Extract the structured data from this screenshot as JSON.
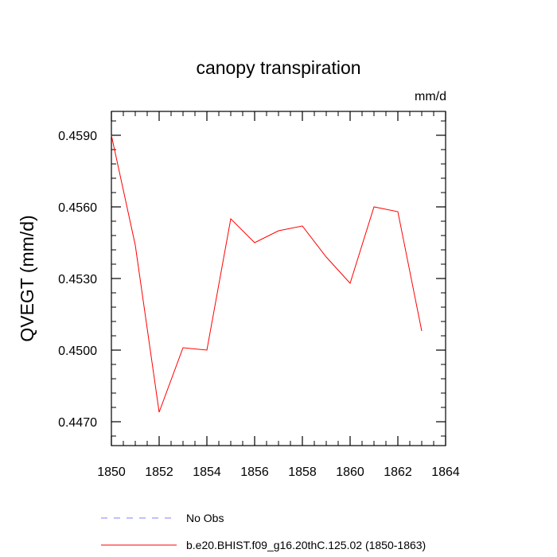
{
  "chart_data": {
    "type": "line",
    "title": "canopy transpiration",
    "units_label": "mm/d",
    "ylabel": "QVEGT  (mm/d)",
    "xlabel": "",
    "xlim": [
      1850,
      1864
    ],
    "ylim": [
      0.446,
      0.46
    ],
    "x_ticks": [
      1850,
      1852,
      1854,
      1856,
      1858,
      1860,
      1862,
      1864
    ],
    "x_tick_labels": [
      "1850",
      "1852",
      "1854",
      "1856",
      "1858",
      "1860",
      "1862",
      "1864"
    ],
    "y_ticks": [
      0.447,
      0.45,
      0.453,
      0.456,
      0.459
    ],
    "y_tick_labels": [
      "0.4470",
      "0.4500",
      "0.4530",
      "0.4560",
      "0.4590"
    ],
    "grid": false,
    "legend_position": "bottom",
    "series": [
      {
        "name": "No Obs",
        "color": "#8080ff",
        "dash": true,
        "x": [],
        "y": []
      },
      {
        "name": "b.e20.BHIST.f09_g16.20thC.125.02 (1850-1863)",
        "color": "#ff0000",
        "dash": false,
        "x": [
          1850,
          1851,
          1852,
          1853,
          1854,
          1855,
          1856,
          1857,
          1858,
          1859,
          1860,
          1861,
          1862,
          1863
        ],
        "y": [
          0.459,
          0.4544,
          0.4474,
          0.4501,
          0.45,
          0.4555,
          0.4545,
          0.455,
          0.4552,
          0.4539,
          0.4528,
          0.456,
          0.4558,
          0.4508
        ]
      }
    ]
  }
}
